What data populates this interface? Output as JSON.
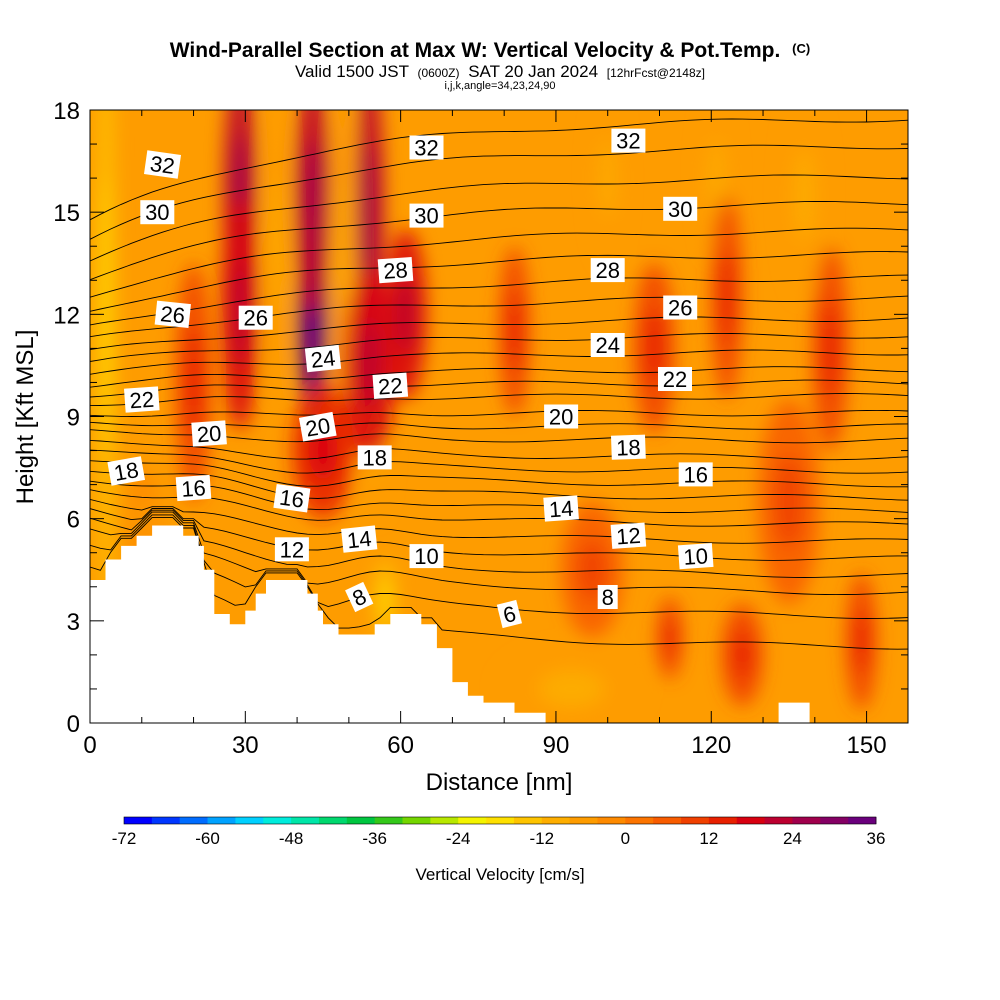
{
  "chart_data": {
    "type": "heatmap",
    "title": "Wind-Parallel Section at Max W: Vertical Velocity & Pot.Temp.",
    "title_suffix": "(C)",
    "subtitle_valid": "Valid 1500 JST",
    "subtitle_utc": "(0600Z)",
    "subtitle_date": "SAT 20 Jan 2024",
    "subtitle_fcst": "[12hrFcst@2148z]",
    "subtitle_params": "i,j,k,angle=34,23,24,90",
    "xlabel": "Distance [nm]",
    "ylabel": "Height [Kft MSL]",
    "xlim": [
      0,
      158
    ],
    "ylim": [
      0,
      18
    ],
    "x_ticks": [
      "0",
      "30",
      "60",
      "90",
      "120",
      "150"
    ],
    "y_ticks": [
      "0",
      "3",
      "6",
      "9",
      "12",
      "15",
      "18"
    ],
    "x_tick_values": [
      0,
      30,
      60,
      90,
      120,
      150
    ],
    "y_tick_values": [
      0,
      3,
      6,
      9,
      12,
      15,
      18
    ],
    "colorbar": {
      "label": "Vertical Velocity [cm/s]",
      "range": [
        -72,
        36
      ],
      "ticks": [
        "-72",
        "-60",
        "-48",
        "-36",
        "-24",
        "-12",
        "0",
        "12",
        "24",
        "36"
      ],
      "tick_values": [
        -72,
        -60,
        -48,
        -36,
        -24,
        -12,
        0,
        12,
        24,
        36
      ],
      "colors": [
        "#0000ff",
        "#0036ff",
        "#006cff",
        "#00a2ff",
        "#00d0ff",
        "#00ecdc",
        "#00e6a8",
        "#00d86e",
        "#00c640",
        "#34c81a",
        "#74d600",
        "#b8e800",
        "#f4f400",
        "#fee000",
        "#fec400",
        "#feae00",
        "#fe9c00",
        "#fe8a00",
        "#fc7400",
        "#f85c00",
        "#f04000",
        "#e82000",
        "#d80010",
        "#bc0030",
        "#a0004c",
        "#840064",
        "#6a007c"
      ]
    },
    "terrain_profile": [
      {
        "x": 0,
        "y": 4.2
      },
      {
        "x": 3,
        "y": 4.2
      },
      {
        "x": 3,
        "y": 4.8
      },
      {
        "x": 6,
        "y": 4.8
      },
      {
        "x": 6,
        "y": 5.2
      },
      {
        "x": 9,
        "y": 5.2
      },
      {
        "x": 9,
        "y": 5.5
      },
      {
        "x": 12,
        "y": 5.5
      },
      {
        "x": 12,
        "y": 5.8
      },
      {
        "x": 18,
        "y": 5.8
      },
      {
        "x": 18,
        "y": 5.5
      },
      {
        "x": 21,
        "y": 5.5
      },
      {
        "x": 21,
        "y": 5.2
      },
      {
        "x": 22,
        "y": 5.2
      },
      {
        "x": 22,
        "y": 4.5
      },
      {
        "x": 24,
        "y": 4.5
      },
      {
        "x": 24,
        "y": 3.2
      },
      {
        "x": 27,
        "y": 3.2
      },
      {
        "x": 27,
        "y": 2.9
      },
      {
        "x": 30,
        "y": 2.9
      },
      {
        "x": 30,
        "y": 3.3
      },
      {
        "x": 32,
        "y": 3.3
      },
      {
        "x": 32,
        "y": 3.8
      },
      {
        "x": 34,
        "y": 3.8
      },
      {
        "x": 34,
        "y": 4.2
      },
      {
        "x": 42,
        "y": 4.2
      },
      {
        "x": 42,
        "y": 3.8
      },
      {
        "x": 44,
        "y": 3.8
      },
      {
        "x": 44,
        "y": 3.3
      },
      {
        "x": 45,
        "y": 3.3
      },
      {
        "x": 45,
        "y": 2.9
      },
      {
        "x": 48,
        "y": 2.9
      },
      {
        "x": 48,
        "y": 2.6
      },
      {
        "x": 55,
        "y": 2.6
      },
      {
        "x": 55,
        "y": 2.9
      },
      {
        "x": 58,
        "y": 2.9
      },
      {
        "x": 58,
        "y": 3.2
      },
      {
        "x": 64,
        "y": 3.2
      },
      {
        "x": 64,
        "y": 2.9
      },
      {
        "x": 67,
        "y": 2.9
      },
      {
        "x": 67,
        "y": 2.2
      },
      {
        "x": 70,
        "y": 2.2
      },
      {
        "x": 70,
        "y": 1.2
      },
      {
        "x": 73,
        "y": 1.2
      },
      {
        "x": 73,
        "y": 0.8
      },
      {
        "x": 76,
        "y": 0.8
      },
      {
        "x": 76,
        "y": 0.6
      },
      {
        "x": 82,
        "y": 0.6
      },
      {
        "x": 82,
        "y": 0.3
      },
      {
        "x": 88,
        "y": 0.3
      },
      {
        "x": 88,
        "y": 0
      },
      {
        "x": 133,
        "y": 0
      },
      {
        "x": 133,
        "y": 0.6
      },
      {
        "x": 139,
        "y": 0.6
      },
      {
        "x": 139,
        "y": 0
      },
      {
        "x": 158,
        "y": 0
      }
    ],
    "updraft_cores": [
      {
        "x": 43,
        "y": 11.7,
        "w": 36,
        "sx": 3.0,
        "sy": 2.8
      },
      {
        "x": 43,
        "y": 15.5,
        "w": 22,
        "sx": 3.5,
        "sy": 3.5
      },
      {
        "x": 29,
        "y": 15.5,
        "w": 20,
        "sx": 3.2,
        "sy": 4.0
      },
      {
        "x": 29,
        "y": 12.0,
        "w": 16,
        "sx": 3.6,
        "sy": 3.4
      },
      {
        "x": 54,
        "y": 15.0,
        "w": 20,
        "sx": 2.8,
        "sy": 4.5
      },
      {
        "x": 54,
        "y": 10.5,
        "w": 18,
        "sx": 5.0,
        "sy": 2.8
      },
      {
        "x": 61,
        "y": 12.0,
        "w": 16,
        "sx": 4.0,
        "sy": 2.5
      },
      {
        "x": 45,
        "y": 8.0,
        "w": 12,
        "sx": 6.0,
        "sy": 2.0
      },
      {
        "x": 20,
        "y": 10.0,
        "w": 10,
        "sx": 3.5,
        "sy": 3.5
      },
      {
        "x": 82,
        "y": 11.5,
        "w": 9,
        "sx": 3.0,
        "sy": 2.5
      },
      {
        "x": 109,
        "y": 11.0,
        "w": 9,
        "sx": 4.0,
        "sy": 2.5
      },
      {
        "x": 123,
        "y": 12.5,
        "w": 8,
        "sx": 3.0,
        "sy": 3.0
      },
      {
        "x": 143,
        "y": 11.0,
        "w": 8,
        "sx": 3.5,
        "sy": 3.0
      },
      {
        "x": 112,
        "y": 2.5,
        "w": 10,
        "sx": 2.5,
        "sy": 1.2
      },
      {
        "x": 126,
        "y": 2.0,
        "w": 8,
        "sx": 4.0,
        "sy": 1.5
      },
      {
        "x": 149,
        "y": 2.4,
        "w": 8,
        "sx": 3.0,
        "sy": 2.0
      },
      {
        "x": 135,
        "y": 6.5,
        "w": 5,
        "sx": 6.0,
        "sy": 3.0
      },
      {
        "x": 97,
        "y": 4.5,
        "w": 4,
        "sx": 6.0,
        "sy": 2.0
      }
    ],
    "downdraft_cores": [
      {
        "x": 3,
        "y": 12.0,
        "w": -16,
        "sx": 1.8,
        "sy": 9.0
      },
      {
        "x": 36,
        "y": 14.0,
        "w": -8,
        "sx": 2.0,
        "sy": 4.5
      },
      {
        "x": 49,
        "y": 14.0,
        "w": -8,
        "sx": 2.0,
        "sy": 4.5
      },
      {
        "x": 57,
        "y": 3.6,
        "w": -16,
        "sx": 2.0,
        "sy": 1.2
      },
      {
        "x": 55,
        "y": 8.0,
        "w": -5,
        "sx": 2.5,
        "sy": 2.0
      },
      {
        "x": 93,
        "y": 1.0,
        "w": -8,
        "sx": 14.0,
        "sy": 1.2
      },
      {
        "x": 100,
        "y": 16.0,
        "w": -8,
        "sx": 3.0,
        "sy": 2.5
      },
      {
        "x": 138,
        "y": 15.5,
        "w": -8,
        "sx": 4.0,
        "sy": 3.0
      },
      {
        "x": 121,
        "y": 16.0,
        "w": -5,
        "sx": 3.0,
        "sy": 2.5
      },
      {
        "x": 10,
        "y": 6.0,
        "w": -4,
        "sx": 3.0,
        "sy": 1.5
      }
    ],
    "isentropes": {
      "levels": [
        6,
        7,
        8,
        9,
        10,
        11,
        12,
        13,
        14,
        15,
        16,
        17,
        18,
        19,
        20,
        21,
        22,
        23,
        24,
        25,
        26,
        27,
        28,
        29,
        30,
        31,
        32,
        33,
        34
      ],
      "heights_east": [
        2.2,
        3.1,
        3.8,
        4.3,
        4.8,
        5.3,
        5.8,
        6.2,
        6.6,
        7.0,
        7.4,
        7.8,
        8.3,
        8.7,
        9.1,
        9.6,
        10.0,
        10.4,
        10.9,
        11.4,
        11.9,
        12.5,
        13.1,
        13.8,
        14.5,
        15.3,
        16.1,
        17.0,
        17.8
      ]
    },
    "contour_labels": [
      {
        "text": "32",
        "x": 14,
        "y": 16.4,
        "rot": 8
      },
      {
        "text": "32",
        "x": 65,
        "y": 16.9,
        "rot": 0
      },
      {
        "text": "32",
        "x": 104,
        "y": 17.1,
        "rot": 0
      },
      {
        "text": "30",
        "x": 13,
        "y": 15.0,
        "rot": 0
      },
      {
        "text": "30",
        "x": 65,
        "y": 14.9,
        "rot": 0
      },
      {
        "text": "30",
        "x": 114,
        "y": 15.1,
        "rot": 0
      },
      {
        "text": "28",
        "x": 59,
        "y": 13.3,
        "rot": -4
      },
      {
        "text": "28",
        "x": 100,
        "y": 13.3,
        "rot": 0
      },
      {
        "text": "26",
        "x": 16,
        "y": 12.0,
        "rot": 6
      },
      {
        "text": "26",
        "x": 32,
        "y": 11.9,
        "rot": 0
      },
      {
        "text": "26",
        "x": 114,
        "y": 12.2,
        "rot": 0
      },
      {
        "text": "24",
        "x": 45,
        "y": 10.7,
        "rot": -6
      },
      {
        "text": "24",
        "x": 100,
        "y": 11.1,
        "rot": 0
      },
      {
        "text": "22",
        "x": 10,
        "y": 9.5,
        "rot": -4
      },
      {
        "text": "22",
        "x": 58,
        "y": 9.9,
        "rot": -4
      },
      {
        "text": "22",
        "x": 113,
        "y": 10.1,
        "rot": 0
      },
      {
        "text": "20",
        "x": 23,
        "y": 8.5,
        "rot": -4
      },
      {
        "text": "20",
        "x": 44,
        "y": 8.7,
        "rot": -10
      },
      {
        "text": "20",
        "x": 91,
        "y": 9.0,
        "rot": 0
      },
      {
        "text": "18",
        "x": 7,
        "y": 7.4,
        "rot": -10
      },
      {
        "text": "18",
        "x": 55,
        "y": 7.8,
        "rot": 0
      },
      {
        "text": "18",
        "x": 104,
        "y": 8.1,
        "rot": -2
      },
      {
        "text": "16",
        "x": 20,
        "y": 6.9,
        "rot": -4
      },
      {
        "text": "16",
        "x": 39,
        "y": 6.6,
        "rot": 8
      },
      {
        "text": "16",
        "x": 117,
        "y": 7.3,
        "rot": 0
      },
      {
        "text": "14",
        "x": 52,
        "y": 5.4,
        "rot": -6
      },
      {
        "text": "14",
        "x": 91,
        "y": 6.3,
        "rot": -4
      },
      {
        "text": "12",
        "x": 39,
        "y": 5.1,
        "rot": 0
      },
      {
        "text": "12",
        "x": 104,
        "y": 5.5,
        "rot": -4
      },
      {
        "text": "10",
        "x": 65,
        "y": 4.9,
        "rot": 0
      },
      {
        "text": "10",
        "x": 117,
        "y": 4.9,
        "rot": -4
      },
      {
        "text": "8",
        "x": 52,
        "y": 3.7,
        "rot": -25
      },
      {
        "text": "8",
        "x": 100,
        "y": 3.7,
        "rot": 0
      },
      {
        "text": "6",
        "x": 81,
        "y": 3.2,
        "rot": -14
      }
    ]
  }
}
